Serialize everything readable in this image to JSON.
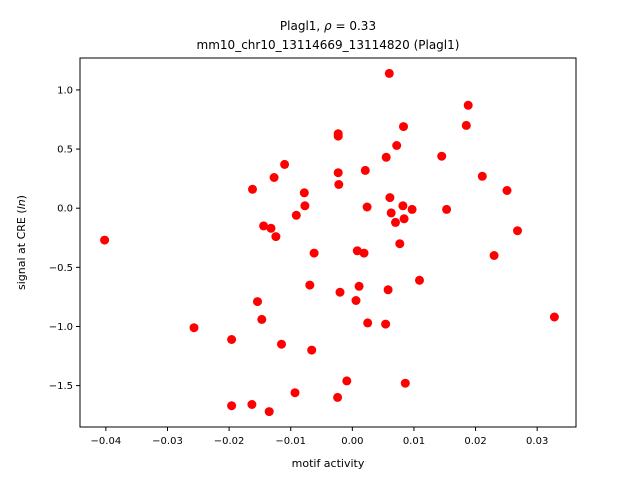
{
  "chart_data": {
    "type": "scatter",
    "title_line1": "Plagl1, ρ = 0.33",
    "title_line2": "mm10_chr10_13114669_13114820 (Plagl1)",
    "xlabel": "motif activity",
    "ylabel": "signal at CRE (ln)",
    "xlim": [
      -0.0442,
      0.0363
    ],
    "ylim": [
      -1.85,
      1.27
    ],
    "xticks": [
      -0.04,
      -0.03,
      -0.02,
      -0.01,
      0.0,
      0.01,
      0.02,
      0.03
    ],
    "xtick_labels": [
      "−0.04",
      "−0.03",
      "−0.02",
      "−0.01",
      "0.00",
      "0.01",
      "0.02",
      "0.03"
    ],
    "yticks": [
      -1.5,
      -1.0,
      -0.5,
      0.0,
      0.5,
      1.0
    ],
    "ytick_labels": [
      "−1.5",
      "−1.0",
      "−0.5",
      "0.0",
      "0.5",
      "1.0"
    ],
    "marker_color": "#ff0000",
    "points": [
      [
        -0.0402,
        -0.27
      ],
      [
        -0.0257,
        -1.01
      ],
      [
        -0.0196,
        -1.11
      ],
      [
        -0.0196,
        -1.67
      ],
      [
        -0.0163,
        -1.66
      ],
      [
        -0.0162,
        0.16
      ],
      [
        -0.0154,
        -0.79
      ],
      [
        -0.0147,
        -0.94
      ],
      [
        -0.0144,
        -0.15
      ],
      [
        -0.0135,
        -1.72
      ],
      [
        -0.0132,
        -0.17
      ],
      [
        -0.0127,
        0.26
      ],
      [
        -0.0124,
        -0.24
      ],
      [
        -0.0115,
        -1.15
      ],
      [
        -0.011,
        0.37
      ],
      [
        -0.0093,
        -1.56
      ],
      [
        -0.0091,
        -0.06
      ],
      [
        -0.0078,
        0.13
      ],
      [
        -0.0077,
        0.02
      ],
      [
        -0.0069,
        -0.65
      ],
      [
        -0.0066,
        -1.2
      ],
      [
        -0.0062,
        -0.38
      ],
      [
        -0.0023,
        0.61
      ],
      [
        -0.0023,
        0.63
      ],
      [
        -0.0023,
        0.3
      ],
      [
        -0.0022,
        0.2
      ],
      [
        -0.0024,
        -1.6
      ],
      [
        -0.002,
        -0.71
      ],
      [
        -0.0009,
        -1.46
      ],
      [
        0.0006,
        -0.78
      ],
      [
        0.0008,
        -0.36
      ],
      [
        0.0011,
        -0.66
      ],
      [
        0.0019,
        -0.38
      ],
      [
        0.0021,
        0.32
      ],
      [
        0.0024,
        0.01
      ],
      [
        0.0025,
        -0.97
      ],
      [
        0.0054,
        -0.98
      ],
      [
        0.0055,
        0.43
      ],
      [
        0.0058,
        -0.69
      ],
      [
        0.006,
        1.14
      ],
      [
        0.0061,
        0.09
      ],
      [
        0.0063,
        -0.04
      ],
      [
        0.007,
        -0.12
      ],
      [
        0.0072,
        0.53
      ],
      [
        0.0077,
        -0.3
      ],
      [
        0.0082,
        0.02
      ],
      [
        0.0083,
        0.69
      ],
      [
        0.0084,
        -0.09
      ],
      [
        0.0086,
        -1.48
      ],
      [
        0.0097,
        -0.01
      ],
      [
        0.0109,
        -0.61
      ],
      [
        0.0145,
        0.44
      ],
      [
        0.0153,
        -0.01
      ],
      [
        0.0185,
        0.7
      ],
      [
        0.0188,
        0.87
      ],
      [
        0.0211,
        0.27
      ],
      [
        0.023,
        -0.4
      ],
      [
        0.0251,
        0.15
      ],
      [
        0.0268,
        -0.19
      ],
      [
        0.0328,
        -0.92
      ]
    ]
  }
}
